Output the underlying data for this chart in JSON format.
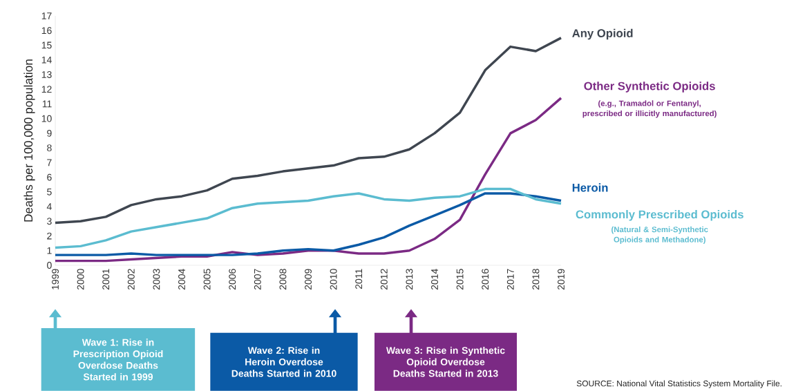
{
  "chart_data": {
    "type": "line",
    "ylabel": "Deaths per 100,000 population",
    "x": [
      1999,
      2000,
      2001,
      2002,
      2003,
      2004,
      2005,
      2006,
      2007,
      2008,
      2009,
      2010,
      2011,
      2012,
      2013,
      2014,
      2015,
      2016,
      2017,
      2018,
      2019
    ],
    "xlim": [
      1999,
      2019
    ],
    "xticks": [
      1999,
      2000,
      2001,
      2002,
      2003,
      2004,
      2005,
      2006,
      2007,
      2008,
      2009,
      2010,
      2011,
      2012,
      2013,
      2014,
      2015,
      2016,
      2017,
      2018,
      2019
    ],
    "ylim": [
      0,
      17
    ],
    "yticks": [
      0,
      1,
      2,
      3,
      4,
      5,
      6,
      7,
      8,
      9,
      10,
      11,
      12,
      13,
      14,
      15,
      16,
      17
    ],
    "marker": "none",
    "line_style": "solid",
    "series": [
      {
        "name": "Any Opioid",
        "color": "#3f4650",
        "values": [
          2.9,
          3.0,
          3.3,
          4.1,
          4.5,
          4.7,
          5.1,
          5.9,
          6.1,
          6.4,
          6.6,
          6.8,
          7.3,
          7.4,
          7.9,
          9.0,
          10.4,
          13.3,
          14.9,
          14.6,
          15.5
        ]
      },
      {
        "name": "Other Synthetic Opioids",
        "color": "#7b2a84",
        "values": [
          0.3,
          0.3,
          0.3,
          0.4,
          0.5,
          0.6,
          0.6,
          0.9,
          0.7,
          0.8,
          1.0,
          1.0,
          0.8,
          0.8,
          1.0,
          1.8,
          3.1,
          6.2,
          9.0,
          9.9,
          11.4
        ]
      },
      {
        "name": "Heroin",
        "color": "#0b5aa6",
        "values": [
          0.7,
          0.7,
          0.7,
          0.8,
          0.7,
          0.7,
          0.7,
          0.7,
          0.8,
          1.0,
          1.1,
          1.0,
          1.4,
          1.9,
          2.7,
          3.4,
          4.1,
          4.9,
          4.9,
          4.7,
          4.4
        ]
      },
      {
        "name": "Commonly Prescribed Opioids",
        "color": "#5bbcd0",
        "values": [
          1.2,
          1.3,
          1.7,
          2.3,
          2.6,
          2.9,
          3.2,
          3.9,
          4.2,
          4.3,
          4.4,
          4.7,
          4.9,
          4.5,
          4.4,
          4.6,
          4.7,
          5.2,
          5.2,
          4.5,
          4.2
        ]
      }
    ],
    "annotations": [
      "Wave 1: Rise in Prescription Opioid Overdose Deaths Started in 1999",
      "Wave 2: Rise in Heroin Overdose Deaths Started in 2010",
      "Wave 3: Rise in Synthetic Opioid Overdose Deaths Started in 2013",
      "(e.g., Tramadol or Fentanyl, prescribed or illicitly manufactured)",
      "(Natural & Semi-Synthetic Opioids and Methadone)",
      "SOURCE: National Vital Statistics System Mortality File."
    ]
  }
}
